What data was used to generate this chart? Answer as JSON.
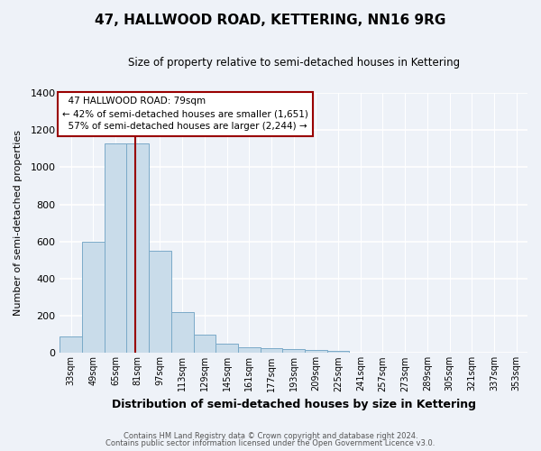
{
  "title": "47, HALLWOOD ROAD, KETTERING, NN16 9RG",
  "subtitle": "Size of property relative to semi-detached houses in Kettering",
  "xlabel": "Distribution of semi-detached houses by size in Kettering",
  "ylabel": "Number of semi-detached properties",
  "bin_labels": [
    "33sqm",
    "49sqm",
    "65sqm",
    "81sqm",
    "97sqm",
    "113sqm",
    "129sqm",
    "145sqm",
    "161sqm",
    "177sqm",
    "193sqm",
    "209sqm",
    "225sqm",
    "241sqm",
    "257sqm",
    "273sqm",
    "289sqm",
    "305sqm",
    "321sqm",
    "337sqm",
    "353sqm"
  ],
  "bar_values": [
    90,
    600,
    1130,
    1130,
    550,
    220,
    100,
    50,
    30,
    25,
    20,
    15,
    10,
    0,
    0,
    0,
    0,
    0,
    0,
    0,
    0
  ],
  "bar_color": "#c9dcea",
  "bar_edge_color": "#7aaac8",
  "property_label": "47 HALLWOOD ROAD: 79sqm",
  "pct_smaller": 42,
  "pct_larger": 57,
  "count_smaller": 1651,
  "count_larger": 2244,
  "vline_color": "#990000",
  "annotation_box_color": "#ffffff",
  "annotation_box_edge": "#990000",
  "ylim": [
    0,
    1400
  ],
  "yticks": [
    0,
    200,
    400,
    600,
    800,
    1000,
    1200,
    1400
  ],
  "footer_line1": "Contains HM Land Registry data © Crown copyright and database right 2024.",
  "footer_line2": "Contains public sector information licensed under the Open Government Licence v3.0.",
  "background_color": "#eef2f8",
  "vline_x": 2.87
}
